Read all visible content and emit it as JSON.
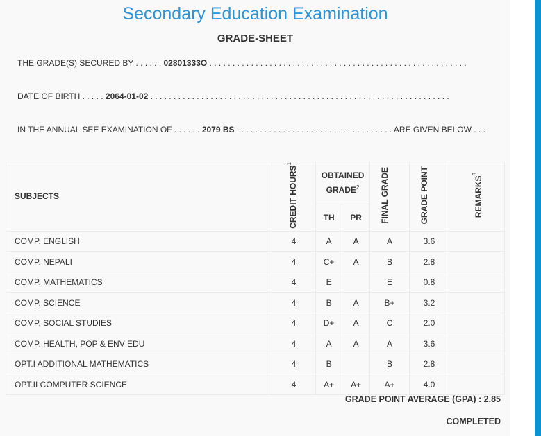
{
  "title": "Secondary Education Examination",
  "subtitle": "GRADE-SHEET",
  "secured_by": {
    "label": "THE GRADE(S) SECURED BY . . . . . . ",
    "value": "02801333O",
    "trail": " . . . . . . . . . . . . . . . . . . . . . . . . . . . . . . . . . . . . . . . . . . . . . . . . . . . . . . . ."
  },
  "dob": {
    "label": "DATE OF BIRTH . . . . . ",
    "value": "2064-01-02",
    "trail": " . . . . . . . . . . . . . . . . . . . . . . . . . . . . . . . . . . . . . . . . . . . . . . . . . . . . . . . . . . . . . . . . ."
  },
  "exam": {
    "label": "IN THE ANNUAL SEE EXAMINATION OF . . . . . . ",
    "value": "2079 BS",
    "trail": " . . . . . . . . . . . . . . . . . . . . . . . . . . . . . . . . . . ARE GIVEN BELOW . . ."
  },
  "headers": {
    "subjects": "SUBJECTS",
    "credit": "CREDIT HOURS",
    "credit_sup": "1",
    "obtained": "OBTAINED GRADE",
    "obtained_sup": "2",
    "th": "TH",
    "pr": "PR",
    "final": "FINAL GRADE",
    "point": "GRADE POINT",
    "remarks": "REMARKS",
    "remarks_sup": "3"
  },
  "rows": [
    [
      "COMP. ENGLISH",
      "4",
      "A",
      "A",
      "A",
      "3.6",
      ""
    ],
    [
      "COMP. NEPALI",
      "4",
      "C+",
      "A",
      "B",
      "2.8",
      ""
    ],
    [
      "COMP. MATHEMATICS",
      "4",
      "E",
      "",
      "E",
      "0.8",
      ""
    ],
    [
      "COMP. SCIENCE",
      "4",
      "B",
      "A",
      "B+",
      "3.2",
      ""
    ],
    [
      "COMP. SOCIAL STUDIES",
      "4",
      "D+",
      "A",
      "C",
      "2.0",
      ""
    ],
    [
      "COMP. HEALTH, POP & ENV EDU",
      "4",
      "A",
      "A",
      "A",
      "3.6",
      ""
    ],
    [
      "OPT.I ADDITIONAL MATHEMATICS",
      "4",
      "B",
      "",
      "B",
      "2.8",
      ""
    ],
    [
      "OPT.II COMPUTER SCIENCE",
      "4",
      "A+",
      "A+",
      "A+",
      "4.0",
      ""
    ]
  ],
  "gpa": "GRADE POINT AVERAGE (GPA) : 2.85",
  "status": "COMPLETED",
  "colors": {
    "title": "#2a95d8",
    "scrollbar": "#0b93d1"
  }
}
